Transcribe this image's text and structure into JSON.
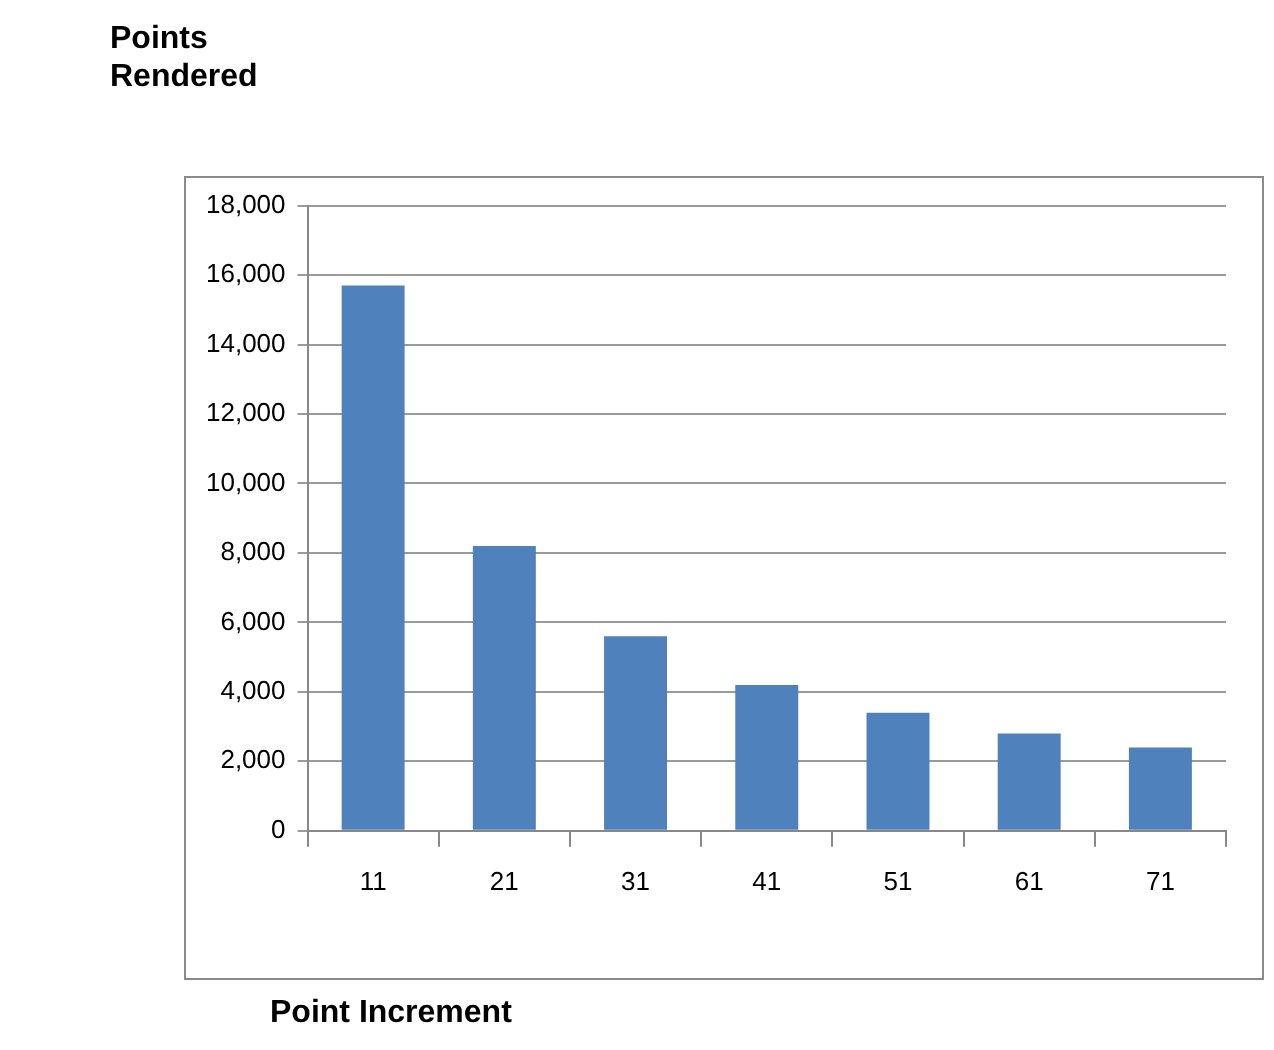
{
  "chart_data": {
    "type": "bar",
    "ylabel": "Points Rendered",
    "xlabel": "Point Increment",
    "categories": [
      "11",
      "21",
      "31",
      "41",
      "51",
      "61",
      "71"
    ],
    "values": [
      15700,
      8200,
      5600,
      4200,
      3400,
      2800,
      2400
    ],
    "color": "#4f81bd",
    "ylim": [
      0,
      18000
    ],
    "yticks": [
      {
        "value": 0,
        "label": "0"
      },
      {
        "value": 2000,
        "label": "2,000"
      },
      {
        "value": 4000,
        "label": "4,000"
      },
      {
        "value": 6000,
        "label": "6,000"
      },
      {
        "value": 8000,
        "label": "8,000"
      },
      {
        "value": 10000,
        "label": "10,000"
      },
      {
        "value": 12000,
        "label": "12,000"
      },
      {
        "value": 14000,
        "label": "14,000"
      },
      {
        "value": 16000,
        "label": "16,000"
      },
      {
        "value": 18000,
        "label": "18,000"
      }
    ],
    "grid": "y",
    "legend": false
  }
}
